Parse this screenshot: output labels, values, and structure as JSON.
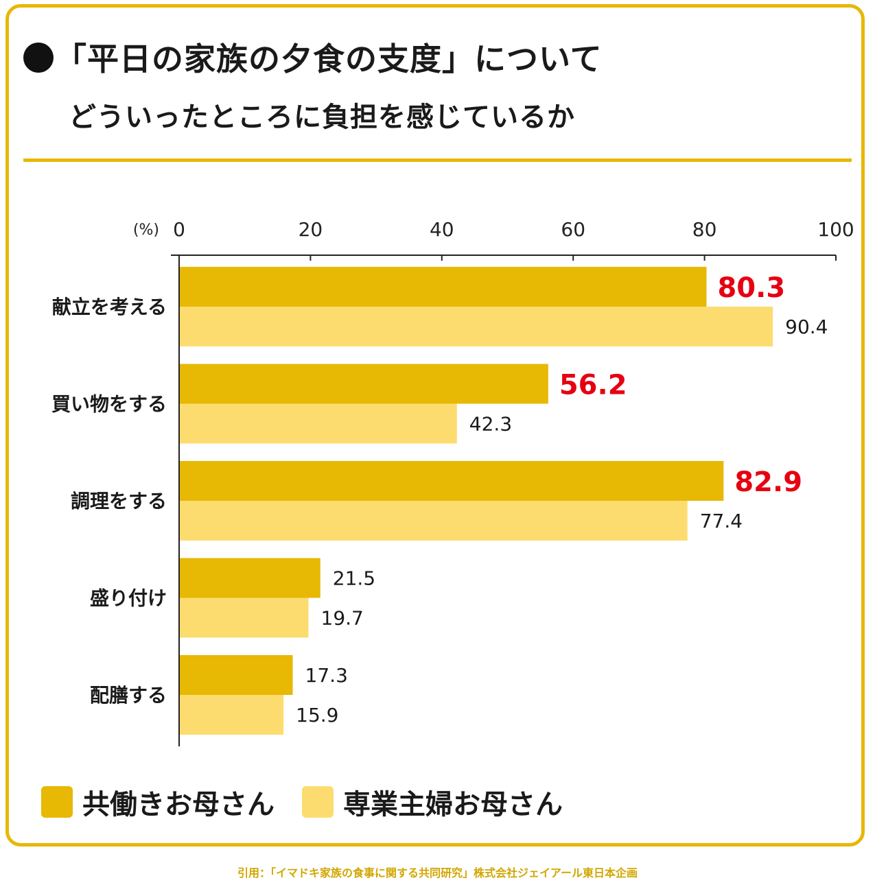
{
  "colors": {
    "accent": "#e7b804",
    "series1": "#e7b804",
    "series2": "#fddc6f",
    "highlight": "#e60012"
  },
  "header": {
    "title": "「平日の家族の夕食の支度」について",
    "subtitle": "どういったところに負担を感じているか"
  },
  "chart_data": {
    "type": "bar",
    "orientation": "horizontal",
    "unit_label": "(%)",
    "xlim": [
      0,
      100
    ],
    "ticks": [
      0,
      20,
      40,
      60,
      80,
      100
    ],
    "categories": [
      "献立を考える",
      "買い物をする",
      "調理をする",
      "盛り付け",
      "配膳する"
    ],
    "series": [
      {
        "name": "共働きお母さん",
        "values": [
          80.3,
          56.2,
          82.9,
          21.5,
          17.3
        ],
        "labels": [
          "80.3",
          "56.2",
          "82.9",
          "21.5",
          "17.3"
        ],
        "highlight": [
          true,
          true,
          true,
          false,
          false
        ]
      },
      {
        "name": "専業主婦お母さん",
        "values": [
          90.4,
          42.3,
          77.4,
          19.7,
          15.9
        ],
        "labels": [
          "90.4",
          "42.3",
          "77.4",
          "19.7",
          "15.9"
        ],
        "highlight": [
          false,
          false,
          false,
          false,
          false
        ]
      }
    ],
    "legend_position": "bottom-left"
  },
  "legend": {
    "items": [
      "共働きお母さん",
      "専業主婦お母さん"
    ]
  },
  "source": "引用：「イマドキ家族の食事に関する共同研究」株式会社ジェイアール東日本企画"
}
